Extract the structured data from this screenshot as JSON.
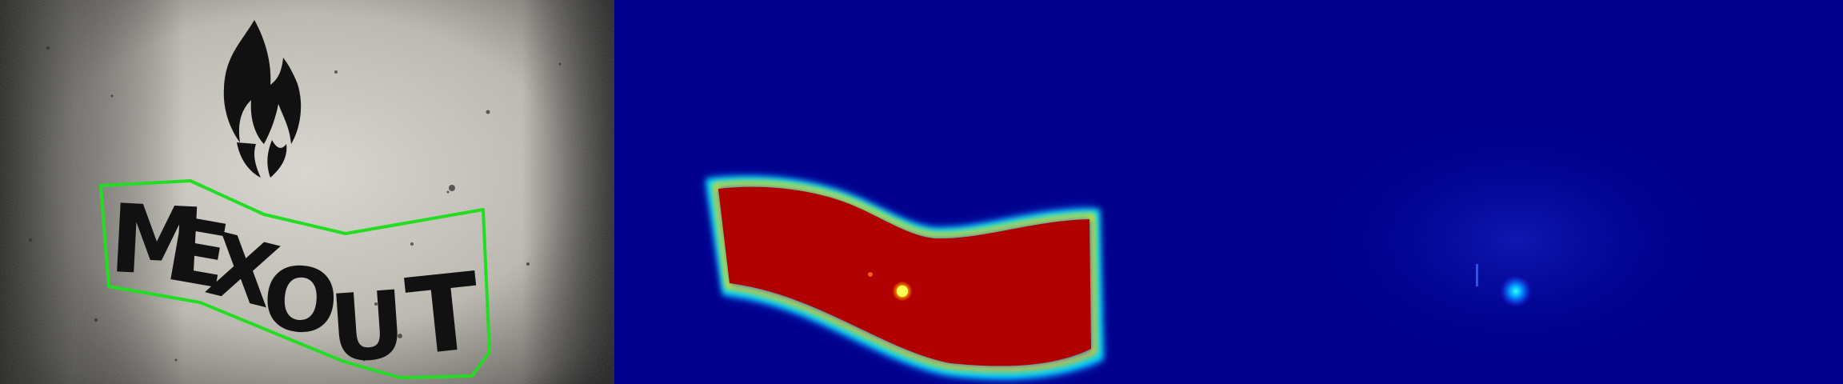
{
  "image": {
    "panels": [
      {
        "role": "photo",
        "description_icon": "flame-stencil-icon"
      },
      {
        "role": "heatmap-full"
      },
      {
        "role": "heatmap-sparse"
      }
    ],
    "stencil": {
      "word": "MEXOUT",
      "letters": [
        "M",
        "E",
        "X",
        "O",
        "U",
        "T"
      ]
    },
    "colors": {
      "wall_light": "#d9d6d0",
      "wall_dark": "#2a2a28",
      "paint": "#111111",
      "outline": "#22dd22",
      "heat_bg": "#00008b",
      "heat_hot": "#b00000",
      "heat_mid_orange": "#ff8800",
      "heat_mid_yellow": "#ffff00",
      "heat_cyan": "#00e5ff",
      "heat_blue": "#1a55ff"
    }
  }
}
